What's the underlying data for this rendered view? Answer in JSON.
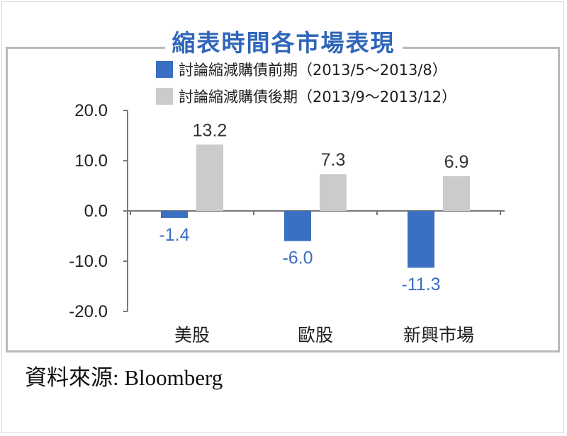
{
  "title": "縮表時間各市場表現",
  "source": "資料來源: Bloomberg",
  "chart_data": {
    "type": "bar",
    "categories": [
      "美股",
      "歐股",
      "新興市場"
    ],
    "series": [
      {
        "name": "討論縮減購債前期（2013/5～2013/8）",
        "values": [
          -1.4,
          -6.0,
          -11.3
        ],
        "labels": [
          "-1.4",
          "-6.0",
          "-11.3"
        ],
        "color": "#3a6fc1"
      },
      {
        "name": "討論縮減購債後期（2013/9～2013/12）",
        "values": [
          13.2,
          7.3,
          6.9
        ],
        "labels": [
          "13.2",
          "7.3",
          "6.9"
        ],
        "color": "#cbcbcb"
      }
    ],
    "ylim": [
      -20,
      20
    ],
    "yticks": [
      20,
      10,
      0,
      -10,
      -20
    ],
    "ytick_labels": [
      "20.0",
      "10.0",
      "0.0",
      "-10.0",
      "-20.0"
    ],
    "grid": false,
    "legend_position": "top",
    "negative_label_color": "#3a6fc1",
    "positive_label_color": "#333333"
  }
}
